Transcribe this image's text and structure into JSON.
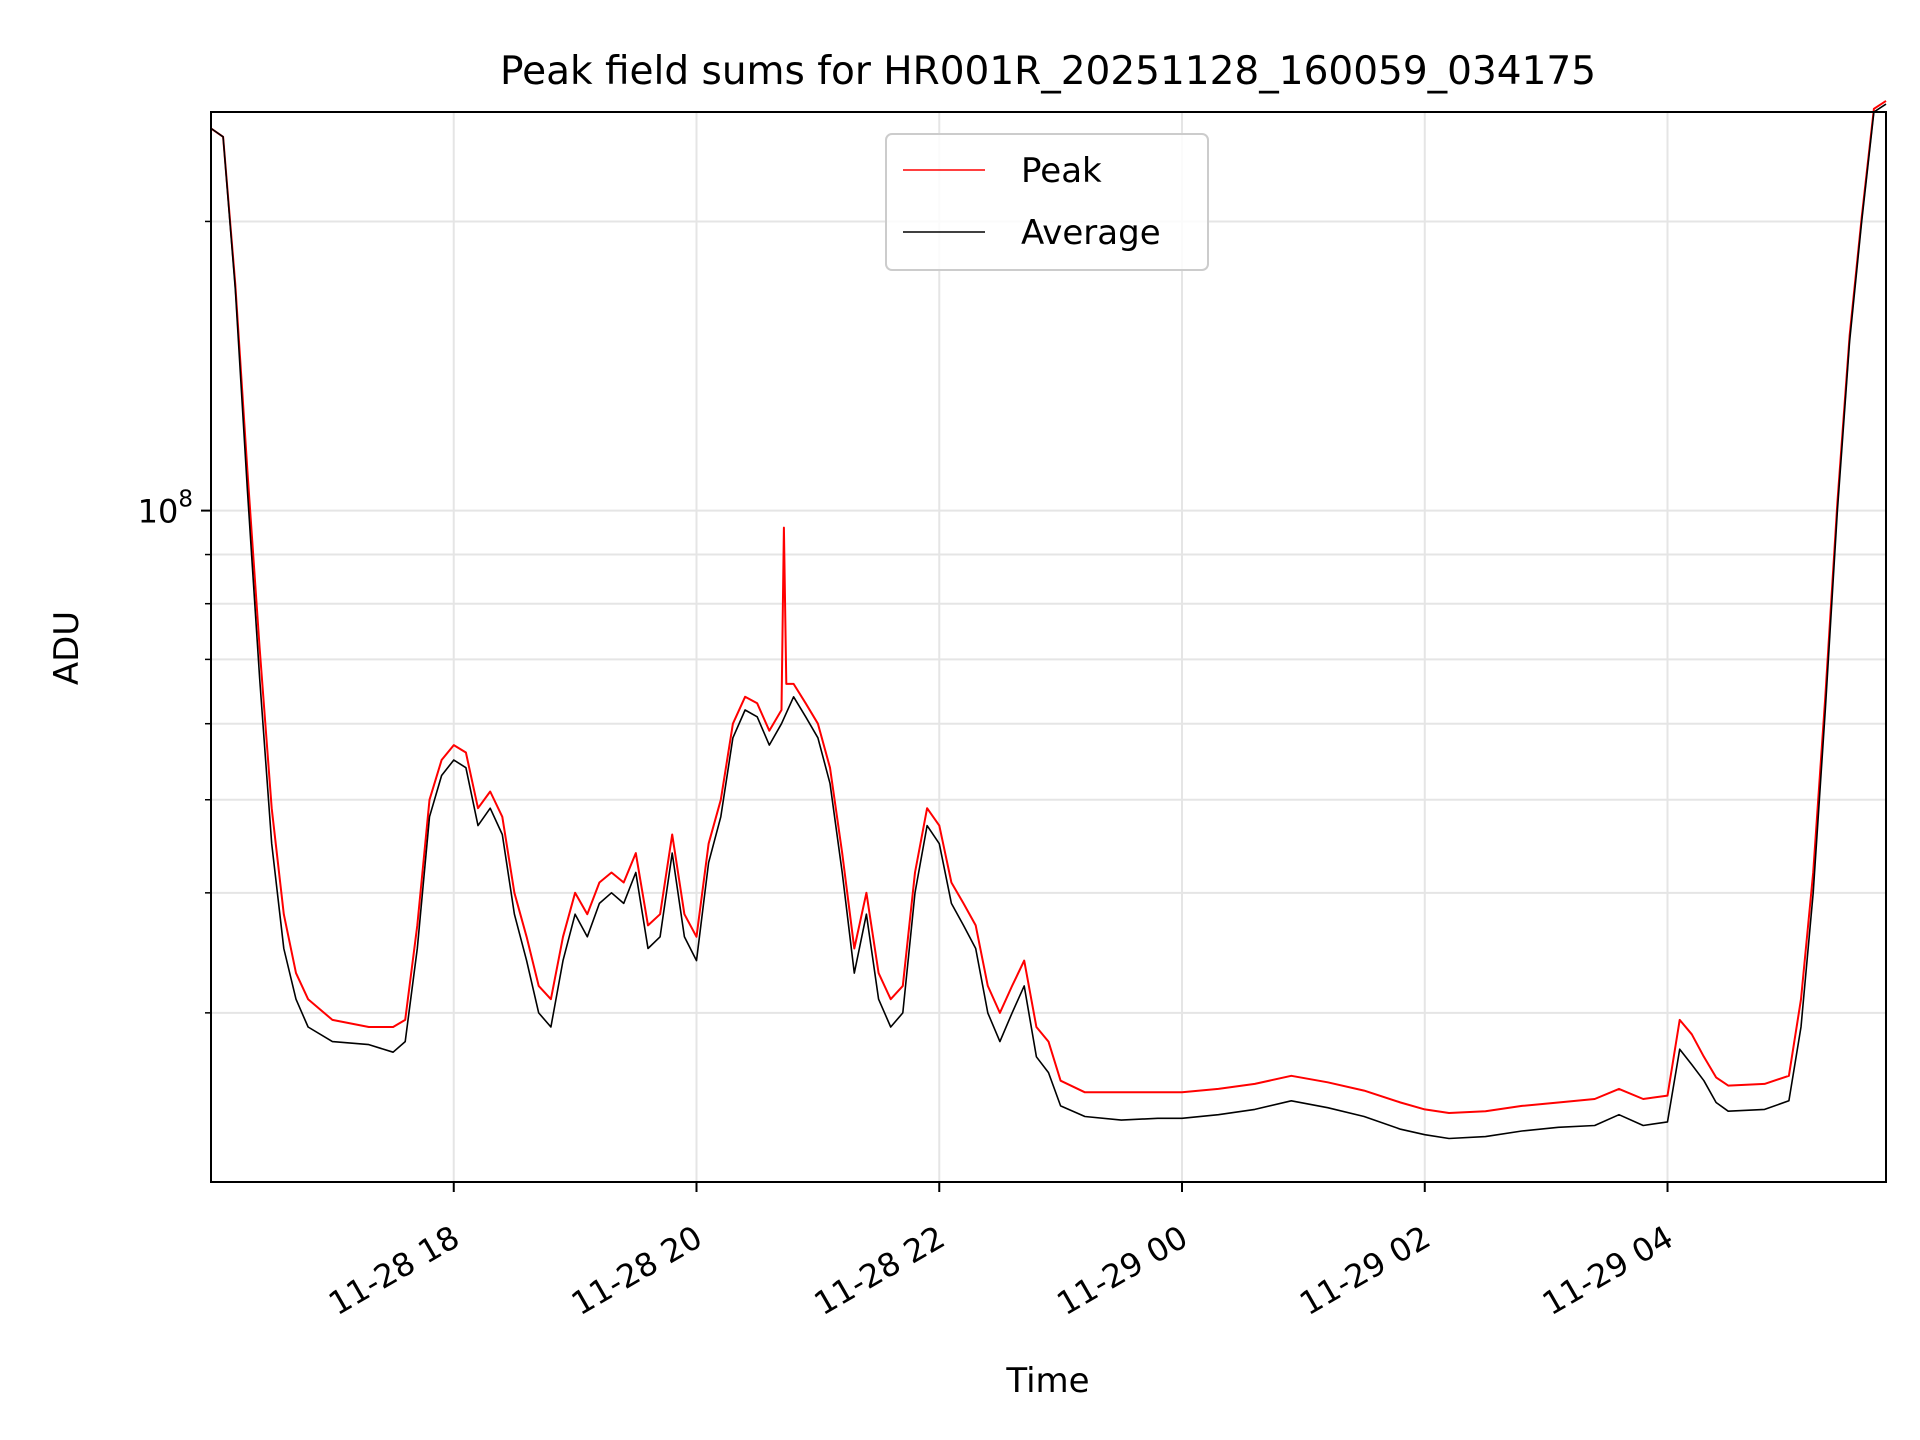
{
  "chart_data": {
    "type": "line",
    "title": "Peak field sums for HR001R_20251128_160059_034175",
    "xlabel": "Time",
    "ylabel": "ADU",
    "yscale": "log",
    "ylim": [
      20000000,
      260000000
    ],
    "xlim_hours": [
      16.0,
      29.8
    ],
    "x_unit": "hours since 2025-11-28 00:00",
    "grid": true,
    "legend_position": "upper center",
    "x_ticks": [
      {
        "hour": 18,
        "label": "11-28 18"
      },
      {
        "hour": 20,
        "label": "11-28 20"
      },
      {
        "hour": 22,
        "label": "11-28 22"
      },
      {
        "hour": 24,
        "label": "11-29 00"
      },
      {
        "hour": 26,
        "label": "11-29 02"
      },
      {
        "hour": 28,
        "label": "11-29 04"
      }
    ],
    "y_major_ticks": [
      {
        "value": 100000000,
        "base": "10",
        "exp": "8"
      }
    ],
    "y_minor_ticks": [
      30000000,
      40000000,
      50000000,
      60000000,
      70000000,
      80000000,
      90000000,
      200000000
    ],
    "series": [
      {
        "name": "Average",
        "color": "#000000",
        "points": [
          [
            16.0,
            250000000
          ],
          [
            16.1,
            245000000
          ],
          [
            16.2,
            170000000
          ],
          [
            16.3,
            105000000
          ],
          [
            16.4,
            67000000
          ],
          [
            16.5,
            45000000
          ],
          [
            16.6,
            35000000
          ],
          [
            16.7,
            31000000
          ],
          [
            16.8,
            29000000
          ],
          [
            17.0,
            28000000
          ],
          [
            17.3,
            27800000
          ],
          [
            17.5,
            27300000
          ],
          [
            17.6,
            28000000
          ],
          [
            17.7,
            35000000
          ],
          [
            17.8,
            48000000
          ],
          [
            17.9,
            53000000
          ],
          [
            18.0,
            55000000
          ],
          [
            18.1,
            54000000
          ],
          [
            18.2,
            47000000
          ],
          [
            18.3,
            49000000
          ],
          [
            18.4,
            46000000
          ],
          [
            18.5,
            38000000
          ],
          [
            18.6,
            34000000
          ],
          [
            18.7,
            30000000
          ],
          [
            18.8,
            29000000
          ],
          [
            18.9,
            34000000
          ],
          [
            19.0,
            38000000
          ],
          [
            19.1,
            36000000
          ],
          [
            19.2,
            39000000
          ],
          [
            19.3,
            40000000
          ],
          [
            19.4,
            39000000
          ],
          [
            19.5,
            42000000
          ],
          [
            19.6,
            35000000
          ],
          [
            19.7,
            36000000
          ],
          [
            19.8,
            44000000
          ],
          [
            19.9,
            36000000
          ],
          [
            20.0,
            34000000
          ],
          [
            20.1,
            43000000
          ],
          [
            20.2,
            48000000
          ],
          [
            20.3,
            58000000
          ],
          [
            20.4,
            62000000
          ],
          [
            20.5,
            61000000
          ],
          [
            20.6,
            57000000
          ],
          [
            20.7,
            60000000
          ],
          [
            20.8,
            64000000
          ],
          [
            20.9,
            61000000
          ],
          [
            21.0,
            58000000
          ],
          [
            21.1,
            52000000
          ],
          [
            21.2,
            42000000
          ],
          [
            21.3,
            33000000
          ],
          [
            21.4,
            38000000
          ],
          [
            21.5,
            31000000
          ],
          [
            21.6,
            29000000
          ],
          [
            21.7,
            30000000
          ],
          [
            21.8,
            40000000
          ],
          [
            21.9,
            47000000
          ],
          [
            22.0,
            45000000
          ],
          [
            22.1,
            39000000
          ],
          [
            22.2,
            37000000
          ],
          [
            22.3,
            35000000
          ],
          [
            22.4,
            30000000
          ],
          [
            22.5,
            28000000
          ],
          [
            22.6,
            30000000
          ],
          [
            22.7,
            32000000
          ],
          [
            22.8,
            27000000
          ],
          [
            22.9,
            26000000
          ],
          [
            23.0,
            24000000
          ],
          [
            23.2,
            23400000
          ],
          [
            23.5,
            23200000
          ],
          [
            23.8,
            23300000
          ],
          [
            24.0,
            23300000
          ],
          [
            24.3,
            23500000
          ],
          [
            24.6,
            23800000
          ],
          [
            24.9,
            24300000
          ],
          [
            25.2,
            23900000
          ],
          [
            25.5,
            23400000
          ],
          [
            25.8,
            22700000
          ],
          [
            26.0,
            22400000
          ],
          [
            26.2,
            22200000
          ],
          [
            26.5,
            22300000
          ],
          [
            26.8,
            22600000
          ],
          [
            27.1,
            22800000
          ],
          [
            27.4,
            22900000
          ],
          [
            27.6,
            23500000
          ],
          [
            27.8,
            22900000
          ],
          [
            28.0,
            23100000
          ],
          [
            28.1,
            27500000
          ],
          [
            28.2,
            26500000
          ],
          [
            28.3,
            25500000
          ],
          [
            28.4,
            24200000
          ],
          [
            28.5,
            23700000
          ],
          [
            28.8,
            23800000
          ],
          [
            29.0,
            24300000
          ],
          [
            29.1,
            29000000
          ],
          [
            29.2,
            40000000
          ],
          [
            29.3,
            62000000
          ],
          [
            29.4,
            100000000
          ],
          [
            29.5,
            150000000
          ],
          [
            29.6,
            200000000
          ],
          [
            29.7,
            260000000
          ],
          [
            29.8,
            265000000
          ]
        ]
      },
      {
        "name": "Peak",
        "color": "#ff0000",
        "points": [
          [
            16.0,
            250000000
          ],
          [
            16.1,
            245000000
          ],
          [
            16.2,
            172000000
          ],
          [
            16.3,
            110000000
          ],
          [
            16.4,
            72000000
          ],
          [
            16.5,
            49000000
          ],
          [
            16.6,
            38000000
          ],
          [
            16.7,
            33000000
          ],
          [
            16.8,
            31000000
          ],
          [
            17.0,
            29500000
          ],
          [
            17.3,
            29000000
          ],
          [
            17.5,
            29000000
          ],
          [
            17.6,
            29500000
          ],
          [
            17.7,
            37000000
          ],
          [
            17.8,
            50000000
          ],
          [
            17.9,
            55000000
          ],
          [
            18.0,
            57000000
          ],
          [
            18.1,
            56000000
          ],
          [
            18.2,
            49000000
          ],
          [
            18.3,
            51000000
          ],
          [
            18.4,
            48000000
          ],
          [
            18.5,
            40000000
          ],
          [
            18.6,
            36000000
          ],
          [
            18.7,
            32000000
          ],
          [
            18.8,
            31000000
          ],
          [
            18.9,
            36000000
          ],
          [
            19.0,
            40000000
          ],
          [
            19.1,
            38000000
          ],
          [
            19.2,
            41000000
          ],
          [
            19.3,
            42000000
          ],
          [
            19.4,
            41000000
          ],
          [
            19.5,
            44000000
          ],
          [
            19.6,
            37000000
          ],
          [
            19.7,
            38000000
          ],
          [
            19.8,
            46000000
          ],
          [
            19.9,
            38000000
          ],
          [
            20.0,
            36000000
          ],
          [
            20.1,
            45000000
          ],
          [
            20.2,
            50000000
          ],
          [
            20.3,
            60000000
          ],
          [
            20.4,
            64000000
          ],
          [
            20.5,
            63000000
          ],
          [
            20.6,
            59000000
          ],
          [
            20.7,
            62000000
          ],
          [
            20.72,
            96000000
          ],
          [
            20.74,
            66000000
          ],
          [
            20.8,
            66000000
          ],
          [
            20.9,
            63000000
          ],
          [
            21.0,
            60000000
          ],
          [
            21.1,
            54000000
          ],
          [
            21.2,
            44000000
          ],
          [
            21.3,
            35000000
          ],
          [
            21.4,
            40000000
          ],
          [
            21.5,
            33000000
          ],
          [
            21.6,
            31000000
          ],
          [
            21.7,
            32000000
          ],
          [
            21.8,
            42000000
          ],
          [
            21.9,
            49000000
          ],
          [
            22.0,
            47000000
          ],
          [
            22.1,
            41000000
          ],
          [
            22.2,
            39000000
          ],
          [
            22.3,
            37000000
          ],
          [
            22.4,
            32000000
          ],
          [
            22.5,
            30000000
          ],
          [
            22.6,
            32000000
          ],
          [
            22.7,
            34000000
          ],
          [
            22.8,
            29000000
          ],
          [
            22.9,
            28000000
          ],
          [
            23.0,
            25500000
          ],
          [
            23.2,
            24800000
          ],
          [
            23.5,
            24800000
          ],
          [
            23.8,
            24800000
          ],
          [
            24.0,
            24800000
          ],
          [
            24.3,
            25000000
          ],
          [
            24.6,
            25300000
          ],
          [
            24.9,
            25800000
          ],
          [
            25.2,
            25400000
          ],
          [
            25.5,
            24900000
          ],
          [
            25.8,
            24200000
          ],
          [
            26.0,
            23800000
          ],
          [
            26.2,
            23600000
          ],
          [
            26.5,
            23700000
          ],
          [
            26.8,
            24000000
          ],
          [
            27.1,
            24200000
          ],
          [
            27.4,
            24400000
          ],
          [
            27.6,
            25000000
          ],
          [
            27.8,
            24400000
          ],
          [
            28.0,
            24600000
          ],
          [
            28.1,
            29500000
          ],
          [
            28.2,
            28500000
          ],
          [
            28.3,
            27000000
          ],
          [
            28.4,
            25700000
          ],
          [
            28.5,
            25200000
          ],
          [
            28.8,
            25300000
          ],
          [
            29.0,
            25800000
          ],
          [
            29.1,
            31000000
          ],
          [
            29.2,
            42000000
          ],
          [
            29.3,
            64000000
          ],
          [
            29.4,
            102000000
          ],
          [
            29.5,
            152000000
          ],
          [
            29.6,
            202000000
          ],
          [
            29.7,
            262000000
          ],
          [
            29.8,
            267000000
          ]
        ]
      }
    ]
  }
}
